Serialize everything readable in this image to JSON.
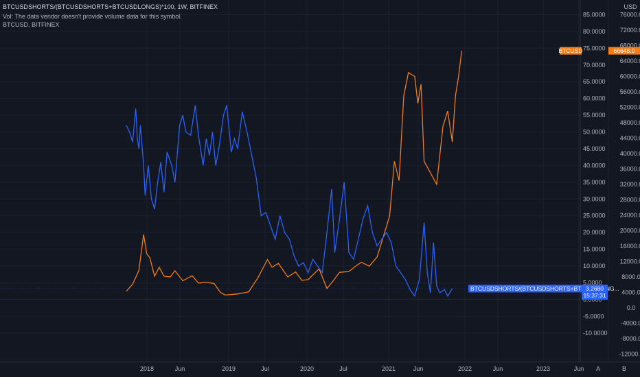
{
  "header": {
    "line1": "BTCUSDSHORTS/(BTCUSDSHORTS+BTCUSDLONGS)*100, 1W, BITFINEX",
    "line2": "Vol: The data vendor doesn't provide volume data for this symbol.",
    "line3": "BTCUSD, BITFINEX"
  },
  "colors": {
    "background": "#131722",
    "grid": "#1e2230",
    "ratio_line": "#2962ff",
    "price_line": "#f57c17",
    "text": "#b2b5be"
  },
  "chart_data": {
    "type": "line",
    "title": "BTCUSDSHORTS/(BTCUSDSHORTS+BTCUSDLONGS)*100, 1W, BITFINEX",
    "timeframe": "1W",
    "x_tick_labels": [
      "2018",
      "Jun",
      "2019",
      "Jul",
      "2020",
      "Jul",
      "2021",
      "Jun",
      "2022",
      "Jun",
      "2023",
      "Jun"
    ],
    "left_axis": {
      "unit": "",
      "ylim": [
        -10,
        85
      ],
      "tick_labels": [
        "85.0000",
        "80.0000",
        "75.0000",
        "70.0000",
        "65.0000",
        "60.0000",
        "55.0000",
        "50.0000",
        "45.0000",
        "40.0000",
        "35.0000",
        "30.0000",
        "25.0000",
        "20.0000",
        "15.0000",
        "10.0000",
        "5.0000",
        "0.0000",
        "-5.0000",
        "-10.0000"
      ]
    },
    "right_axis": {
      "unit": "USD",
      "ylim": [
        -12000,
        76000
      ],
      "tick_labels": [
        "76000.0",
        "72000.0",
        "68000.0",
        "64000.0",
        "60000.0",
        "56000.0",
        "52000.0",
        "48000.0",
        "44000.0",
        "40000.0",
        "36000.0",
        "32000.0",
        "28000.0",
        "24000.0",
        "20000.0",
        "16000.0",
        "12000.0",
        "8000.0",
        "4000.0",
        "0.0",
        "-4000.0",
        "-8000.0",
        "-12000.0"
      ]
    },
    "series": [
      {
        "name": "BTCUSDSHORTS/(BTCUSDSHORTS+BTCUSDLONGS)*100",
        "axis": "left",
        "color": "#2962ff",
        "points": [
          [
            "2017-10-01",
            52
          ],
          [
            "2017-10-15",
            50
          ],
          [
            "2017-10-29",
            47
          ],
          [
            "2017-11-05",
            52
          ],
          [
            "2017-11-12",
            57
          ],
          [
            "2017-11-19",
            48
          ],
          [
            "2017-11-26",
            45
          ],
          [
            "2017-12-03",
            52
          ],
          [
            "2017-12-17",
            40
          ],
          [
            "2017-12-24",
            31
          ],
          [
            "2018-01-07",
            40
          ],
          [
            "2018-01-21",
            30
          ],
          [
            "2018-02-04",
            27
          ],
          [
            "2018-02-18",
            35
          ],
          [
            "2018-03-04",
            41
          ],
          [
            "2018-03-18",
            32
          ],
          [
            "2018-04-01",
            44
          ],
          [
            "2018-04-22",
            40
          ],
          [
            "2018-05-06",
            35
          ],
          [
            "2018-05-27",
            52
          ],
          [
            "2018-06-10",
            55
          ],
          [
            "2018-06-24",
            50
          ],
          [
            "2018-07-15",
            49
          ],
          [
            "2018-08-05",
            58
          ],
          [
            "2018-08-19",
            49
          ],
          [
            "2018-09-09",
            40
          ],
          [
            "2018-09-23",
            48
          ],
          [
            "2018-10-07",
            43
          ],
          [
            "2018-10-21",
            50
          ],
          [
            "2018-11-04",
            40
          ],
          [
            "2018-11-18",
            45
          ],
          [
            "2018-12-09",
            55
          ],
          [
            "2018-12-23",
            58
          ],
          [
            "2019-01-13",
            44
          ],
          [
            "2019-01-27",
            48
          ],
          [
            "2019-02-10",
            45
          ],
          [
            "2019-03-03",
            56
          ],
          [
            "2019-03-24",
            50
          ],
          [
            "2019-04-14",
            43
          ],
          [
            "2019-05-05",
            36
          ],
          [
            "2019-05-26",
            25
          ],
          [
            "2019-06-16",
            26
          ],
          [
            "2019-07-07",
            22
          ],
          [
            "2019-07-28",
            18
          ],
          [
            "2019-08-18",
            25
          ],
          [
            "2019-09-08",
            20
          ],
          [
            "2019-09-29",
            18
          ],
          [
            "2019-10-20",
            13
          ],
          [
            "2019-11-10",
            10
          ],
          [
            "2019-12-01",
            11
          ],
          [
            "2019-12-22",
            8
          ],
          [
            "2020-01-12",
            12
          ],
          [
            "2020-02-02",
            10
          ],
          [
            "2020-02-23",
            8
          ],
          [
            "2020-03-15",
            20
          ],
          [
            "2020-04-05",
            33
          ],
          [
            "2020-04-19",
            14
          ],
          [
            "2020-05-10",
            24
          ],
          [
            "2020-05-31",
            35
          ],
          [
            "2020-06-21",
            14
          ],
          [
            "2020-07-12",
            12
          ],
          [
            "2020-08-02",
            18
          ],
          [
            "2020-08-23",
            24
          ],
          [
            "2020-09-13",
            28
          ],
          [
            "2020-10-04",
            20
          ],
          [
            "2020-10-25",
            16
          ],
          [
            "2020-11-15",
            18
          ],
          [
            "2020-12-06",
            20
          ],
          [
            "2020-12-27",
            17
          ],
          [
            "2021-01-17",
            10
          ],
          [
            "2021-02-07",
            8
          ],
          [
            "2021-02-28",
            6
          ],
          [
            "2021-03-21",
            3
          ],
          [
            "2021-04-11",
            1
          ],
          [
            "2021-05-02",
            6
          ],
          [
            "2021-05-23",
            23
          ],
          [
            "2021-06-06",
            8
          ],
          [
            "2021-06-20",
            2
          ],
          [
            "2021-07-04",
            17
          ],
          [
            "2021-07-18",
            4
          ],
          [
            "2021-08-01",
            2
          ],
          [
            "2021-08-22",
            3
          ],
          [
            "2021-09-05",
            1
          ],
          [
            "2021-09-26",
            3.27
          ]
        ]
      },
      {
        "name": "BTCUSD, BITFINEX",
        "axis": "right",
        "color": "#f57c17",
        "points": [
          [
            "2017-10-01",
            4300
          ],
          [
            "2017-10-29",
            6100
          ],
          [
            "2017-11-26",
            9700
          ],
          [
            "2017-12-17",
            19000
          ],
          [
            "2017-12-31",
            14000
          ],
          [
            "2018-01-14",
            13000
          ],
          [
            "2018-02-04",
            8200
          ],
          [
            "2018-02-25",
            10500
          ],
          [
            "2018-03-18",
            8200
          ],
          [
            "2018-04-15",
            8000
          ],
          [
            "2018-05-06",
            9600
          ],
          [
            "2018-06-10",
            7000
          ],
          [
            "2018-07-22",
            8300
          ],
          [
            "2018-08-19",
            6400
          ],
          [
            "2018-09-23",
            6600
          ],
          [
            "2018-10-28",
            6300
          ],
          [
            "2018-11-25",
            4000
          ],
          [
            "2018-12-16",
            3300
          ],
          [
            "2019-02-10",
            3600
          ],
          [
            "2019-03-31",
            4100
          ],
          [
            "2019-05-12",
            7800
          ],
          [
            "2019-06-23",
            12500
          ],
          [
            "2019-07-14",
            10500
          ],
          [
            "2019-08-11",
            11500
          ],
          [
            "2019-09-22",
            8000
          ],
          [
            "2019-10-27",
            9300
          ],
          [
            "2019-11-24",
            7100
          ],
          [
            "2019-12-22",
            7300
          ],
          [
            "2020-02-09",
            10100
          ],
          [
            "2020-03-15",
            5000
          ],
          [
            "2020-04-12",
            7000
          ],
          [
            "2020-05-10",
            9200
          ],
          [
            "2020-06-21",
            9400
          ],
          [
            "2020-07-26",
            11000
          ],
          [
            "2020-08-16",
            11800
          ],
          [
            "2020-09-20",
            10800
          ],
          [
            "2020-10-25",
            13200
          ],
          [
            "2020-11-22",
            18500
          ],
          [
            "2020-12-20",
            23800
          ],
          [
            "2021-01-10",
            38000
          ],
          [
            "2021-01-31",
            33000
          ],
          [
            "2021-02-21",
            55000
          ],
          [
            "2021-03-14",
            61000
          ],
          [
            "2021-04-11",
            60000
          ],
          [
            "2021-04-25",
            53000
          ],
          [
            "2021-05-09",
            58000
          ],
          [
            "2021-05-23",
            38000
          ],
          [
            "2021-06-20",
            35000
          ],
          [
            "2021-07-18",
            32000
          ],
          [
            "2021-08-15",
            47000
          ],
          [
            "2021-09-05",
            51000
          ],
          [
            "2021-09-26",
            43000
          ],
          [
            "2021-10-10",
            55000
          ],
          [
            "2021-10-24",
            60000
          ],
          [
            "2021-11-07",
            66648
          ]
        ]
      }
    ],
    "last_values": {
      "price_tag": {
        "label": "BTCUSD",
        "value": "66648.0"
      },
      "ratio_tag": {
        "label": "BTCUSDSHORTS/(BTCUSDSHORTS+BTCUSDLONG...",
        "value": "3.2680",
        "countdown": "15:37:31"
      }
    },
    "grid": true
  },
  "footer": {
    "buttons": [
      "A",
      "B"
    ]
  }
}
